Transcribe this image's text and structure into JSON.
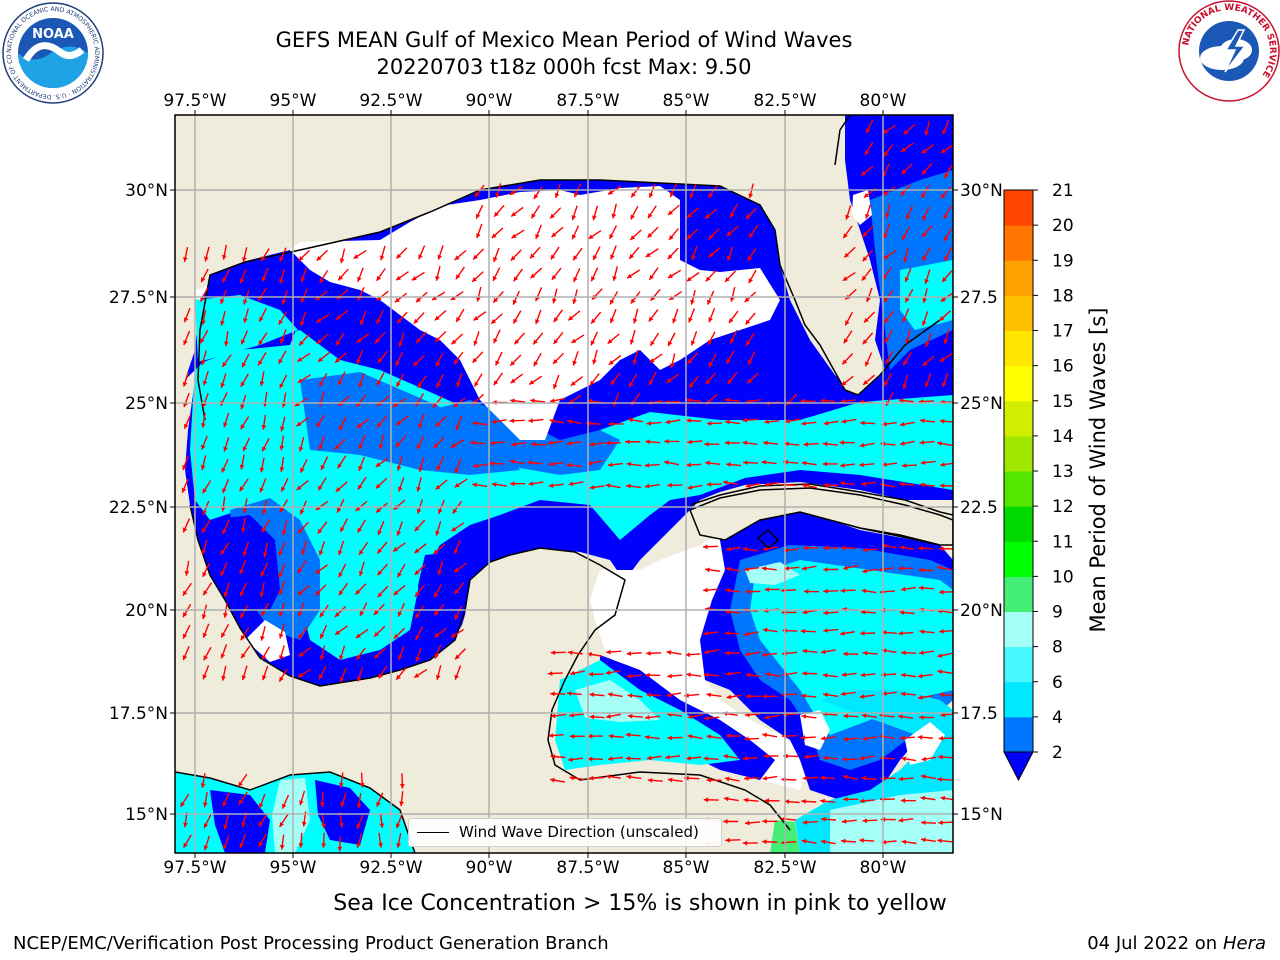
{
  "header": {
    "title_line1": "GEFS MEAN Gulf of Mexico Mean Period of Wind Waves",
    "title_line2": "20220703 t18z 000h fcst   Max: 9.50"
  },
  "logos": {
    "noaa_text": "NOAA",
    "noaa_ring_text": "NATIONAL OCEANIC AND ATMOSPHERIC ADMINISTRATION · U.S. DEPARTMENT OF COMMERCE",
    "nws_ring_text": "NATIONAL WEATHER SERVICE"
  },
  "map": {
    "lon_ticks": [
      "97.5°W",
      "95°W",
      "92.5°W",
      "90°W",
      "87.5°W",
      "85°W",
      "82.5°W",
      "80°W"
    ],
    "lat_ticks_left": [
      "30°N",
      "27.5°N",
      "25°N",
      "22.5°N",
      "20°N",
      "17.5°N",
      "15°N"
    ],
    "lat_ticks_right": [
      "30°N",
      "27.5",
      "25°N",
      "22.5",
      "20°N",
      "17.5",
      "15°N"
    ],
    "legend_label": "Wind Wave Direction (unscaled)",
    "land_color": "#efecdc",
    "no_data_color": "#ffffff",
    "arrow_color": "#ff0000",
    "wave_period_regions": [
      {
        "period_s": "2-4",
        "color": "#0000ff"
      },
      {
        "period_s": "4-6",
        "color": "#00ffff"
      }
    ]
  },
  "colorbar": {
    "title": "Mean Period of Wind Waves [s]",
    "tick_labels": [
      "2",
      "4",
      "6",
      "8",
      "9",
      "10",
      "11",
      "12",
      "13",
      "14",
      "15",
      "16",
      "17",
      "18",
      "19",
      "20",
      "21"
    ],
    "colors": [
      "#0076ff",
      "#00e8ff",
      "#48f6ff",
      "#a6fff6",
      "#45ee77",
      "#00ff00",
      "#00d900",
      "#55e600",
      "#a0e800",
      "#d2ee00",
      "#ffff00",
      "#ffe600",
      "#ffc000",
      "#ffa000",
      "#ff7500",
      "#ff4500",
      "#ff0000"
    ],
    "extend_color": "#0000ff"
  },
  "footer": {
    "subtitle": "Sea Ice Concentration > 15% is shown in pink to yellow",
    "credit_left": "NCEP/EMC/Verification Post Processing Product Generation Branch",
    "credit_date": "04 Jul 2022 on ",
    "credit_host": "Hera"
  }
}
